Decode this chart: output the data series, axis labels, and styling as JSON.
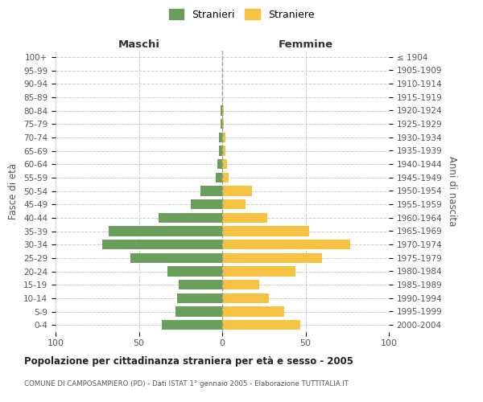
{
  "age_groups": [
    "0-4",
    "5-9",
    "10-14",
    "15-19",
    "20-24",
    "25-29",
    "30-34",
    "35-39",
    "40-44",
    "45-49",
    "50-54",
    "55-59",
    "60-64",
    "65-69",
    "70-74",
    "75-79",
    "80-84",
    "85-89",
    "90-94",
    "95-99",
    "100+"
  ],
  "birth_years": [
    "2000-2004",
    "1995-1999",
    "1990-1994",
    "1985-1989",
    "1980-1984",
    "1975-1979",
    "1970-1974",
    "1965-1969",
    "1960-1964",
    "1955-1959",
    "1950-1954",
    "1945-1949",
    "1940-1944",
    "1935-1939",
    "1930-1934",
    "1925-1929",
    "1920-1924",
    "1915-1919",
    "1910-1914",
    "1905-1909",
    "≤ 1904"
  ],
  "maschi": [
    36,
    28,
    27,
    26,
    33,
    55,
    72,
    68,
    38,
    19,
    13,
    4,
    3,
    2,
    2,
    1,
    1,
    0,
    0,
    0,
    0
  ],
  "femmine": [
    47,
    37,
    28,
    22,
    44,
    60,
    77,
    52,
    27,
    14,
    18,
    4,
    3,
    2,
    2,
    1,
    1,
    0,
    0,
    0,
    0
  ],
  "maschi_color": "#6a9e5b",
  "femmine_color": "#f5c242",
  "background_color": "#ffffff",
  "grid_color": "#cccccc",
  "title": "Popolazione per cittadinanza straniera per età e sesso - 2005",
  "subtitle": "COMUNE DI CAMPOSAMPIERO (PD) - Dati ISTAT 1° gennaio 2005 - Elaborazione TUTTITALIA.IT",
  "ylabel_left": "Fasce di età",
  "ylabel_right": "Anni di nascita",
  "xlabel_left": "Maschi",
  "xlabel_right": "Femmine",
  "legend_maschi": "Stranieri",
  "legend_femmine": "Straniere",
  "xlim": 100,
  "bar_height": 0.75
}
